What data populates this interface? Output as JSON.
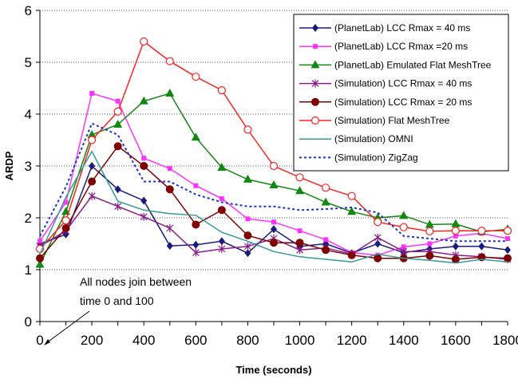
{
  "chart_data": {
    "type": "line",
    "xlabel": "Time (seconds)",
    "ylabel": "ARDP",
    "xlim": [
      0,
      1800
    ],
    "ylim": [
      0,
      6
    ],
    "xticks": [
      0,
      200,
      400,
      600,
      800,
      1000,
      1200,
      1400,
      1600,
      1800
    ],
    "yticks": [
      0,
      1,
      2,
      3,
      4,
      5,
      6
    ],
    "grid": "horizontal dotted",
    "legend_position": "top-right",
    "annotation": {
      "line1": "All nodes join between",
      "line2": "time 0 and 100"
    },
    "x": [
      0,
      100,
      200,
      300,
      400,
      500,
      600,
      700,
      800,
      900,
      1000,
      1100,
      1200,
      1300,
      1400,
      1500,
      1600,
      1700,
      1800
    ],
    "series": [
      {
        "name": "(PlanetLab) LCC Rmax = 40 ms",
        "color": "#1a1a7f",
        "marker": "diamond",
        "dash": "solid",
        "values": [
          1.5,
          1.68,
          3.0,
          2.55,
          2.33,
          1.46,
          1.48,
          1.55,
          1.32,
          1.78,
          1.45,
          1.5,
          1.32,
          1.5,
          1.33,
          1.4,
          1.45,
          1.45,
          1.38
        ]
      },
      {
        "name": "(PlanetLab) LCC Rmax =20 ms",
        "color": "#ff33ff",
        "marker": "square",
        "dash": "solid",
        "values": [
          1.55,
          2.3,
          4.4,
          4.25,
          3.15,
          2.95,
          2.62,
          2.37,
          1.98,
          1.92,
          1.75,
          1.58,
          1.33,
          1.28,
          1.44,
          1.5,
          1.65,
          1.7,
          1.6
        ]
      },
      {
        "name": "(PlanetLab) Emulated Flat MeshTree",
        "color": "#118811",
        "marker": "triangle",
        "dash": "solid",
        "values": [
          1.1,
          2.12,
          3.6,
          3.8,
          4.25,
          4.4,
          3.55,
          2.97,
          2.74,
          2.63,
          2.52,
          2.3,
          2.12,
          2.0,
          2.04,
          1.87,
          1.88,
          1.73,
          1.78
        ]
      },
      {
        "name": "(Simulation) LCC Rmax = 40 ms",
        "color": "#8b1a8b",
        "marker": "star",
        "dash": "solid",
        "values": [
          1.45,
          1.75,
          2.42,
          2.22,
          2.02,
          1.8,
          1.33,
          1.4,
          1.45,
          1.6,
          1.38,
          1.42,
          1.3,
          1.62,
          1.35,
          1.35,
          1.28,
          1.25,
          1.2
        ]
      },
      {
        "name": "(Simulation) LCC Rmax = 20 ms",
        "color": "#800000",
        "marker": "circle-filled",
        "dash": "solid",
        "values": [
          1.22,
          1.8,
          2.7,
          3.38,
          3.0,
          2.55,
          1.87,
          2.15,
          1.66,
          1.52,
          1.52,
          1.38,
          1.28,
          1.22,
          1.22,
          1.27,
          1.2,
          1.24,
          1.22
        ]
      },
      {
        "name": "(Simulation) Flat MeshTree",
        "color": "#ff2222",
        "marker": "circle-open",
        "dash": "solid",
        "values": [
          1.4,
          1.95,
          3.5,
          4.05,
          5.4,
          5.02,
          4.72,
          4.46,
          3.7,
          3.0,
          2.78,
          2.58,
          2.42,
          1.92,
          1.82,
          1.74,
          1.75,
          1.75,
          1.75
        ]
      },
      {
        "name": "(Simulation) OMNI",
        "color": "#339999",
        "marker": "none",
        "dash": "solid",
        "values": [
          1.3,
          2.4,
          3.28,
          2.32,
          2.15,
          2.08,
          2.05,
          1.72,
          1.55,
          1.35,
          1.25,
          1.2,
          1.15,
          1.3,
          1.22,
          1.18,
          1.13,
          1.2,
          1.15
        ]
      },
      {
        "name": "(Simulation) ZigZag",
        "color": "#1a33cc",
        "marker": "none",
        "dash": "dashed",
        "values": [
          1.65,
          2.6,
          3.82,
          3.6,
          2.7,
          2.7,
          2.45,
          2.3,
          2.22,
          2.22,
          2.15,
          2.17,
          2.2,
          2.1,
          1.65,
          1.6,
          1.55,
          1.55,
          1.55
        ]
      }
    ]
  }
}
